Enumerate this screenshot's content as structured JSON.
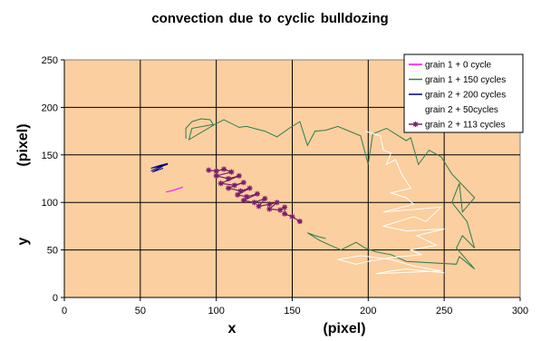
{
  "chart_data": {
    "type": "line",
    "title": "convection due to cyclic bulldozing",
    "xlabel_letter": "x",
    "xlabel_unit": "(pixel)",
    "ylabel_letter": "y",
    "ylabel_unit": "(pixel)",
    "xlim": [
      0,
      300
    ],
    "ylim": [
      0,
      250
    ],
    "xticks": [
      0,
      50,
      100,
      150,
      200,
      250,
      300
    ],
    "yticks": [
      0,
      50,
      100,
      150,
      200,
      250
    ],
    "grid": true,
    "plot_background": "#fbcf9f",
    "legend_position": "top-right",
    "series": [
      {
        "name": "grain 1 + 0 cycle",
        "color": "#ff00ff",
        "marker": "none",
        "points": [
          [
            67,
            111
          ],
          [
            70,
            112
          ],
          [
            72,
            113
          ],
          [
            74,
            114
          ],
          [
            76,
            115
          ],
          [
            78,
            116
          ]
        ]
      },
      {
        "name": "grain 1 + 150 cycles",
        "color": "#2e7d4f",
        "marker": "none",
        "points": [
          [
            80,
            167
          ],
          [
            80,
            178
          ],
          [
            84,
            185
          ],
          [
            90,
            188
          ],
          [
            96,
            187
          ],
          [
            98,
            182
          ],
          [
            84,
            178
          ],
          [
            82,
            166
          ],
          [
            100,
            183
          ],
          [
            105,
            187
          ],
          [
            115,
            179
          ],
          [
            120,
            180
          ],
          [
            127,
            177
          ],
          [
            132,
            175
          ],
          [
            140,
            169
          ],
          [
            148,
            178
          ],
          [
            155,
            185
          ],
          [
            160,
            160
          ],
          [
            165,
            175
          ],
          [
            172,
            176
          ],
          [
            180,
            180
          ],
          [
            195,
            170
          ],
          [
            200,
            140
          ],
          [
            203,
            172
          ],
          [
            212,
            178
          ],
          [
            225,
            165
          ],
          [
            228,
            168
          ],
          [
            233,
            140
          ],
          [
            240,
            155
          ],
          [
            248,
            148
          ],
          [
            255,
            130
          ],
          [
            270,
            105
          ],
          [
            262,
            90
          ],
          [
            260,
            120
          ],
          [
            255,
            100
          ],
          [
            265,
            80
          ],
          [
            270,
            52
          ],
          [
            262,
            65
          ],
          [
            258,
            52
          ],
          [
            270,
            30
          ],
          [
            260,
            43
          ],
          [
            258,
            35
          ],
          [
            225,
            38
          ],
          [
            215,
            45
          ],
          [
            205,
            48
          ],
          [
            198,
            52
          ],
          [
            192,
            58
          ],
          [
            182,
            50
          ],
          [
            175,
            55
          ],
          [
            168,
            60
          ],
          [
            160,
            68
          ],
          [
            165,
            65
          ],
          [
            172,
            62
          ]
        ]
      },
      {
        "name": "grain 2 + 200 cycles",
        "color": "#000080",
        "marker": "none",
        "points": [
          [
            57,
            133
          ],
          [
            62,
            137
          ],
          [
            68,
            140
          ],
          [
            57,
            136
          ],
          [
            63,
            139
          ],
          [
            68,
            141
          ],
          [
            58,
            132
          ],
          [
            65,
            136
          ]
        ]
      },
      {
        "name": "grain 2 + 50cycles",
        "color": "#ffffff",
        "marker": "none",
        "points": [
          [
            198,
            175
          ],
          [
            208,
            170
          ],
          [
            210,
            155
          ],
          [
            215,
            152
          ],
          [
            212,
            140
          ],
          [
            218,
            145
          ],
          [
            222,
            130
          ],
          [
            228,
            115
          ],
          [
            215,
            110
          ],
          [
            225,
            105
          ],
          [
            230,
            98
          ],
          [
            210,
            90
          ],
          [
            248,
            95
          ],
          [
            238,
            80
          ],
          [
            230,
            85
          ],
          [
            210,
            75
          ],
          [
            225,
            70
          ],
          [
            250,
            72
          ],
          [
            232,
            65
          ],
          [
            245,
            55
          ],
          [
            228,
            50
          ],
          [
            235,
            45
          ],
          [
            215,
            42
          ],
          [
            200,
            38
          ],
          [
            192,
            35
          ],
          [
            180,
            40
          ],
          [
            195,
            44
          ],
          [
            215,
            40
          ],
          [
            230,
            33
          ],
          [
            248,
            28
          ],
          [
            205,
            25
          ],
          [
            215,
            28
          ],
          [
            225,
            30
          ],
          [
            250,
            26
          ]
        ]
      },
      {
        "name": "grain 2 + 113 cycles",
        "color": "#7b1d6b",
        "marker": "star",
        "points": [
          [
            95,
            134
          ],
          [
            100,
            133
          ],
          [
            105,
            135
          ],
          [
            110,
            132
          ],
          [
            100,
            128
          ],
          [
            108,
            125
          ],
          [
            115,
            128
          ],
          [
            103,
            120
          ],
          [
            112,
            118
          ],
          [
            118,
            121
          ],
          [
            108,
            115
          ],
          [
            116,
            112
          ],
          [
            122,
            115
          ],
          [
            114,
            108
          ],
          [
            120,
            106
          ],
          [
            127,
            109
          ],
          [
            118,
            102
          ],
          [
            125,
            100
          ],
          [
            132,
            104
          ],
          [
            128,
            96
          ],
          [
            135,
            98
          ],
          [
            140,
            100
          ],
          [
            135,
            93
          ],
          [
            142,
            92
          ],
          [
            145,
            95
          ],
          [
            145,
            88
          ],
          [
            150,
            85
          ],
          [
            155,
            80
          ]
        ]
      }
    ]
  }
}
